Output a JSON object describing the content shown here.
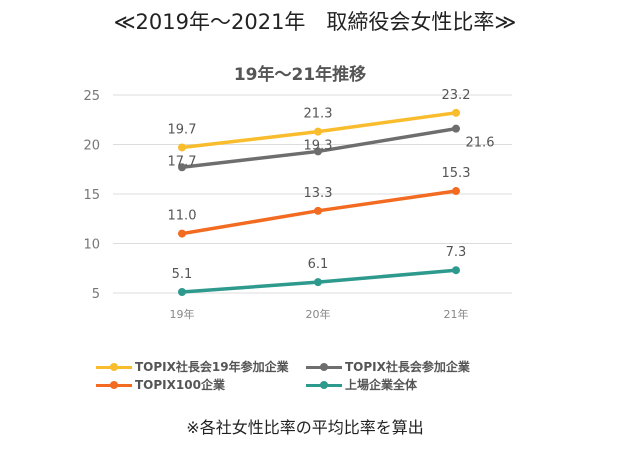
{
  "title": "≪2019年～2021年　取締役会女性比率≫",
  "note": "※各社女性比率の平均比率を算出",
  "chart_data": {
    "type": "line",
    "title": "19年～21年推移",
    "categories": [
      "19年",
      "20年",
      "21年"
    ],
    "ylim": [
      5,
      25
    ],
    "yticks": [
      5,
      10,
      15,
      20,
      25
    ],
    "grid": true,
    "legend_position": "bottom",
    "series": [
      {
        "name": "TOPIX社長会19年参加企業",
        "color": "#F9BC2C",
        "values": [
          19.7,
          21.3,
          23.2
        ],
        "labels": [
          "19.7",
          "21.3",
          "23.2"
        ]
      },
      {
        "name": "TOPIX社長会参加企業",
        "color": "#6E6E6E",
        "values": [
          17.7,
          19.3,
          21.6
        ],
        "labels": [
          "17.7",
          "19.3",
          "21.6"
        ]
      },
      {
        "name": "TOPIX100企業",
        "color": "#F26B21",
        "values": [
          11.0,
          13.3,
          15.3
        ],
        "labels": [
          "11.0",
          "13.3",
          "15.3"
        ]
      },
      {
        "name": "上場企業全体",
        "color": "#2E9A8E",
        "values": [
          5.1,
          6.1,
          7.3
        ],
        "labels": [
          "5.1",
          "6.1",
          "7.3"
        ]
      }
    ]
  }
}
